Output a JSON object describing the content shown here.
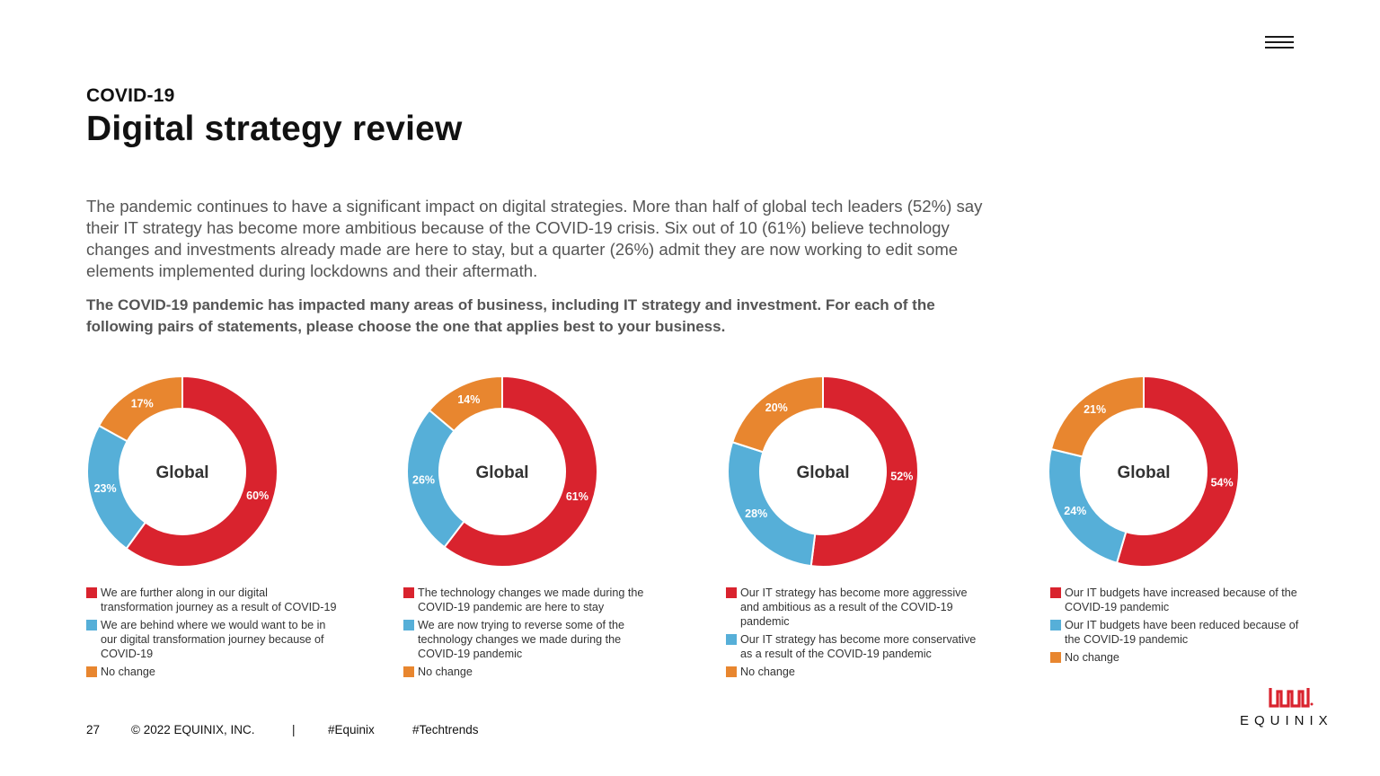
{
  "header": {
    "kicker": "COVID-19",
    "title": "Digital strategy review"
  },
  "intro": "The pandemic continues to have a significant impact on digital strategies. More than half of global tech leaders (52%) say their IT strategy has become more ambitious because of the COVID-19 crisis. Six out of 10 (61%) believe technology changes and investments already made are here to stay, but a quarter (26%) admit they are now working to edit some elements implemented during lockdowns and their aftermath.",
  "question": "The COVID-19 pandemic has impacted many areas of business, including IT strategy and investment. For each of the following pairs of statements, please choose the one that applies best to your business.",
  "colors": {
    "red": "#d9232e",
    "blue": "#56afd8",
    "orange": "#e8862f"
  },
  "chart_data": [
    {
      "type": "pie",
      "center_label": "Global",
      "slices": [
        {
          "value": 60,
          "label": "60%",
          "color": "#d9232e",
          "legend": "We are further along in our digital transformation journey as a result of COVID-19"
        },
        {
          "value": 23,
          "label": "23%",
          "color": "#56afd8",
          "legend": "We are behind where we would want to be in our digital transformation journey because of COVID-19"
        },
        {
          "value": 17,
          "label": "17%",
          "color": "#e8862f",
          "legend": "No change"
        }
      ]
    },
    {
      "type": "pie",
      "center_label": "Global",
      "slices": [
        {
          "value": 61,
          "label": "61%",
          "color": "#d9232e",
          "legend": "The technology changes we made during the COVID-19 pandemic are here to stay"
        },
        {
          "value": 26,
          "label": "26%",
          "color": "#56afd8",
          "legend": "We are now trying to reverse some of the technology changes we made during the COVID-19 pandemic"
        },
        {
          "value": 14,
          "label": "14%",
          "color": "#e8862f",
          "legend": "No change"
        }
      ]
    },
    {
      "type": "pie",
      "center_label": "Global",
      "slices": [
        {
          "value": 52,
          "label": "52%",
          "color": "#d9232e",
          "legend": "Our IT strategy has become more aggressive and ambitious as a result of the COVID-19 pandemic"
        },
        {
          "value": 28,
          "label": "28%",
          "color": "#56afd8",
          "legend": "Our IT strategy has become more conservative as a result of the COVID-19 pandemic"
        },
        {
          "value": 20,
          "label": "20%",
          "color": "#e8862f",
          "legend": "No change"
        }
      ]
    },
    {
      "type": "pie",
      "center_label": "Global",
      "slices": [
        {
          "value": 54,
          "label": "54%",
          "color": "#d9232e",
          "legend": "Our IT budgets have increased because of the COVID-19 pandemic"
        },
        {
          "value": 24,
          "label": "24%",
          "color": "#56afd8",
          "legend": "Our IT budgets have been reduced because of the COVID-19 pandemic"
        },
        {
          "value": 21,
          "label": "21%",
          "color": "#e8862f",
          "legend": "No change"
        }
      ]
    }
  ],
  "footer": {
    "page_number": "27",
    "copyright": "© 2022 EQUINIX, INC.",
    "separator": "|",
    "hashtag1": "#Equinix",
    "hashtag2": "#Techtrends"
  },
  "logo": {
    "text": "EQUINIX"
  }
}
